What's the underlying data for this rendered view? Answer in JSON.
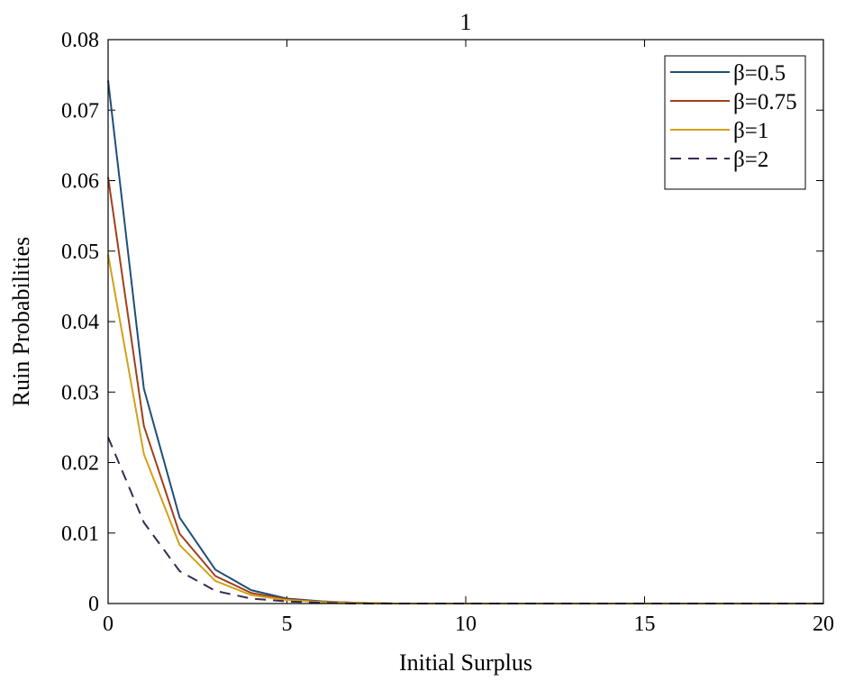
{
  "chart_data": {
    "type": "line",
    "title": "1",
    "xlabel": "Initial Surplus",
    "ylabel": "Ruin Probabilities",
    "xlim": [
      0,
      20
    ],
    "ylim": [
      0,
      0.08
    ],
    "xticks": [
      0,
      5,
      10,
      15,
      20
    ],
    "yticks": [
      0,
      0.01,
      0.02,
      0.03,
      0.04,
      0.05,
      0.06,
      0.07,
      0.08
    ],
    "xtick_labels": [
      "0",
      "5",
      "10",
      "15",
      "20"
    ],
    "ytick_labels": [
      "0",
      "0.01",
      "0.02",
      "0.03",
      "0.04",
      "0.05",
      "0.06",
      "0.07",
      "0.08"
    ],
    "grid": false,
    "legend_position": "top-right",
    "x": [
      0,
      1,
      2,
      3,
      4,
      5,
      6,
      7,
      8,
      9,
      10,
      11,
      12,
      13,
      14,
      15,
      16,
      17,
      18,
      19,
      20
    ],
    "series": [
      {
        "name": "β=0.5",
        "color": "#1f4e79",
        "dash": "solid",
        "values": [
          0.0742,
          0.0305,
          0.0122,
          0.0048,
          0.0019,
          0.0007,
          0.0003,
          0.0001,
          0,
          0,
          0,
          0,
          0,
          0,
          0,
          0,
          0,
          0,
          0,
          0,
          0
        ]
      },
      {
        "name": "β=0.75",
        "color": "#a0401c",
        "dash": "solid",
        "values": [
          0.0605,
          0.0252,
          0.0099,
          0.0039,
          0.0015,
          0.0006,
          0.0002,
          0.0001,
          0,
          0,
          0,
          0,
          0,
          0,
          0,
          0,
          0,
          0,
          0,
          0,
          0
        ]
      },
      {
        "name": "β=1",
        "color": "#d4a019",
        "dash": "solid",
        "values": [
          0.0495,
          0.0212,
          0.0083,
          0.0032,
          0.0012,
          0.0005,
          0.0002,
          0.0001,
          0,
          0,
          0,
          0,
          0,
          0,
          0,
          0,
          0,
          0,
          0,
          0,
          0
        ]
      },
      {
        "name": "β=2",
        "color": "#3b2a4f",
        "dash": "dashed",
        "values": [
          0.0236,
          0.0115,
          0.0046,
          0.0018,
          0.0007,
          0.0003,
          0.0001,
          0,
          0,
          0,
          0,
          0,
          0,
          0,
          0,
          0,
          0,
          0,
          0,
          0,
          0
        ]
      }
    ]
  }
}
